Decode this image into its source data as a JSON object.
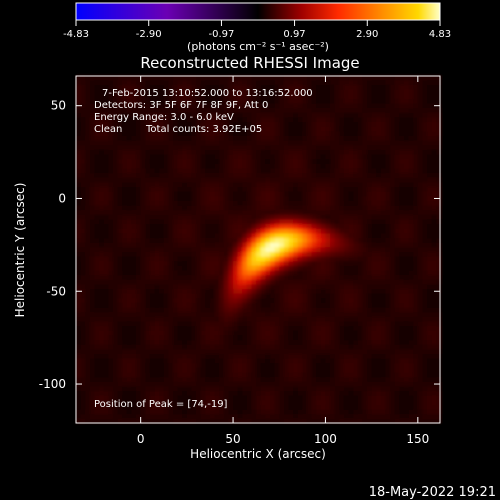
{
  "chart_data": {
    "type": "heatmap",
    "title": "Reconstructed RHESSI Image",
    "xlabel": "Heliocentric X (arcsec)",
    "ylabel": "Heliocentric Y (arcsec)",
    "xlim": [
      -35,
      162
    ],
    "ylim": [
      -121,
      66
    ],
    "xticks": [
      0,
      50,
      100,
      150
    ],
    "yticks": [
      50,
      0,
      -50,
      -100
    ],
    "colorbar": {
      "ticks": [
        "-4.83",
        "-2.90",
        "-0.97",
        "0.97",
        "2.90",
        "4.83"
      ],
      "range": [
        -4.83,
        4.83
      ],
      "unit_label": "(photons cm⁻² s⁻¹ asec⁻²)"
    },
    "annotations": {
      "time_range": "7-Feb-2015 13:10:52.000 to 13:16:52.000",
      "detectors": "Detectors: 3F 5F 6F 7F 8F 9F, Att 0",
      "energy_range": "Energy Range: 3.0 - 6.0 keV",
      "method": "Clean",
      "total_counts": "Total counts: 3.92E+05",
      "peak": "Position of Peak = [74,-19]"
    },
    "peak": {
      "x": 74,
      "y": -19,
      "value": 4.83
    },
    "source": {
      "center_x": 70,
      "center_y": -27,
      "angle_deg": 28,
      "sigma_major": 20,
      "sigma_minor": 8
    }
  },
  "footer": {
    "timestamp": "18-May-2022 19:21"
  }
}
